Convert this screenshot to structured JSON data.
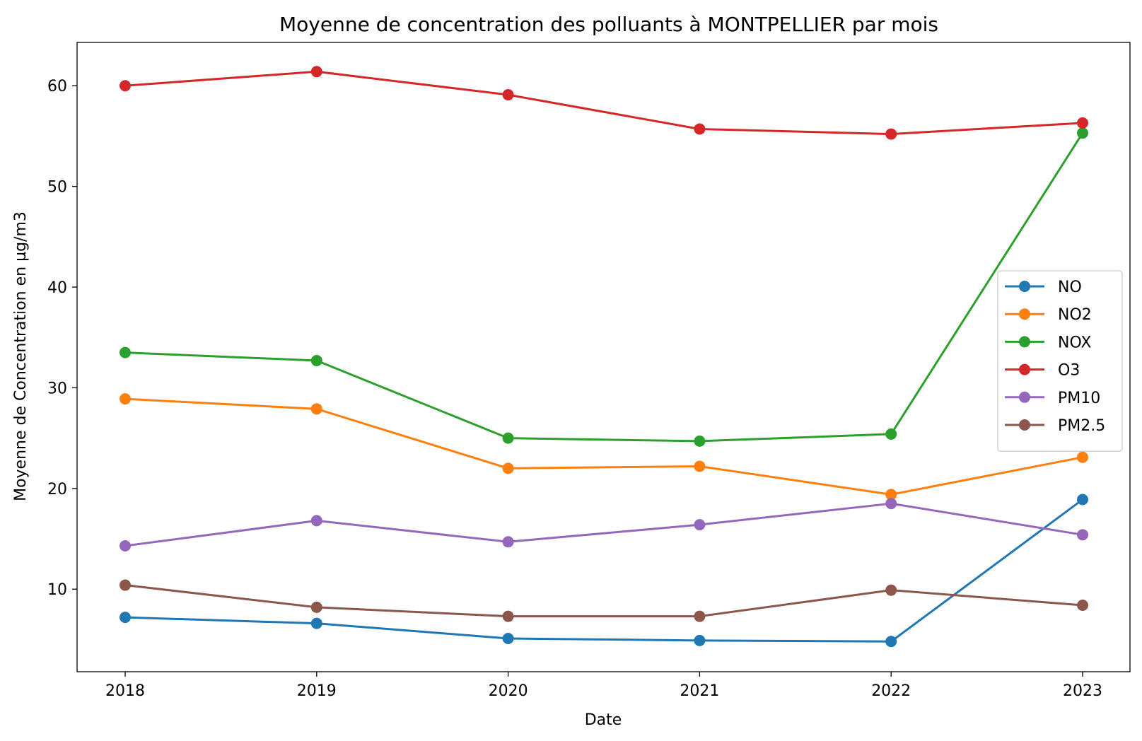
{
  "chart_data": {
    "type": "line",
    "title": "Moyenne de concentration des polluants à MONTPELLIER par mois",
    "xlabel": "Date",
    "ylabel": "Moyenne de Concentration en µg/m3",
    "categories": [
      "2018",
      "2019",
      "2020",
      "2021",
      "2022",
      "2023"
    ],
    "yticks": [
      10,
      20,
      30,
      40,
      50,
      60
    ],
    "ylim": [
      1.8,
      64.3
    ],
    "grid": false,
    "legend_position": "center-right",
    "series": [
      {
        "name": "NO",
        "color": "#1f77b4",
        "values": [
          7.2,
          6.6,
          5.1,
          4.9,
          4.8,
          18.9
        ]
      },
      {
        "name": "NO2",
        "color": "#ff7f0e",
        "values": [
          28.9,
          27.9,
          22.0,
          22.2,
          19.4,
          23.1
        ]
      },
      {
        "name": "NOX",
        "color": "#2ca02c",
        "values": [
          33.5,
          32.7,
          25.0,
          24.7,
          25.4,
          55.3
        ]
      },
      {
        "name": "O3",
        "color": "#d62728",
        "values": [
          60.0,
          61.4,
          59.1,
          55.7,
          55.2,
          56.3
        ]
      },
      {
        "name": "PM10",
        "color": "#9467bd",
        "values": [
          14.3,
          16.8,
          14.7,
          16.4,
          18.5,
          15.4
        ]
      },
      {
        "name": "PM2.5",
        "color": "#8c564b",
        "values": [
          10.4,
          8.2,
          7.3,
          7.3,
          9.9,
          8.4
        ]
      }
    ]
  }
}
